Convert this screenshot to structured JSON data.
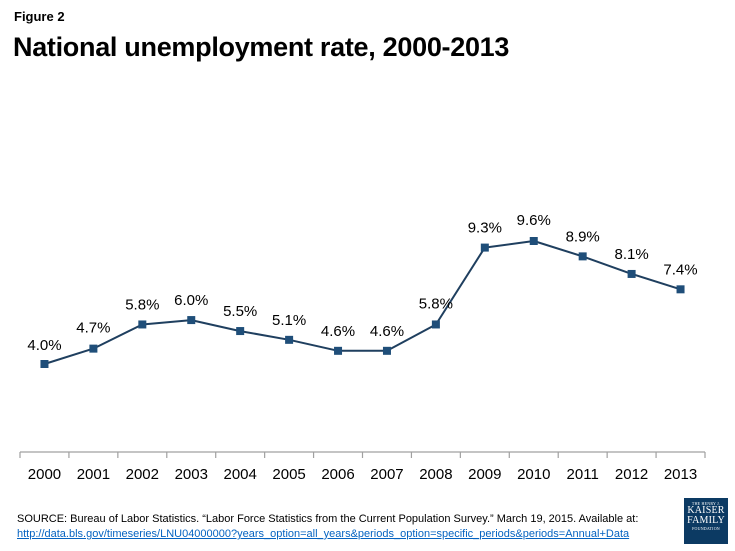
{
  "figure_label": "Figure 2",
  "title": "National unemployment rate, 2000-2013",
  "colors": {
    "line": "#1f3f5f",
    "marker": "#1f4e79",
    "axis": "#a0a0a0",
    "link": "#0563c1",
    "logo_bg": "#0c3a63"
  },
  "chart_data": {
    "type": "line",
    "title": "National unemployment rate, 2000-2013",
    "xlabel": "",
    "ylabel": "",
    "ylim": [
      0,
      10
    ],
    "grid": false,
    "x": [
      "2000",
      "2001",
      "2002",
      "2003",
      "2004",
      "2005",
      "2006",
      "2007",
      "2008",
      "2009",
      "2010",
      "2011",
      "2012",
      "2013"
    ],
    "series": [
      {
        "name": "Unemployment rate",
        "values": [
          4.0,
          4.7,
          5.8,
          6.0,
          5.5,
          5.1,
          4.6,
          4.6,
          5.8,
          9.3,
          9.6,
          8.9,
          8.1,
          7.4
        ],
        "labels": [
          "4.0%",
          "4.7%",
          "5.8%",
          "6.0%",
          "5.5%",
          "5.1%",
          "4.6%",
          "4.6%",
          "5.8%",
          "9.3%",
          "9.6%",
          "8.9%",
          "8.1%",
          "7.4%"
        ]
      }
    ]
  },
  "source": {
    "text": "SOURCE: Bureau of Labor Statistics. “Labor Force Statistics from the Current Population Survey.” March 19, 2015. Available at:",
    "link": "http://data.bls.gov/timeseries/LNU04000000?years_option=all_years&periods_option=specific_periods&periods=Annual+Data"
  },
  "logo": {
    "line1": "THE HENRY J.",
    "line2": "KAISER",
    "line3": "FAMILY",
    "line4": "FOUNDATION"
  }
}
